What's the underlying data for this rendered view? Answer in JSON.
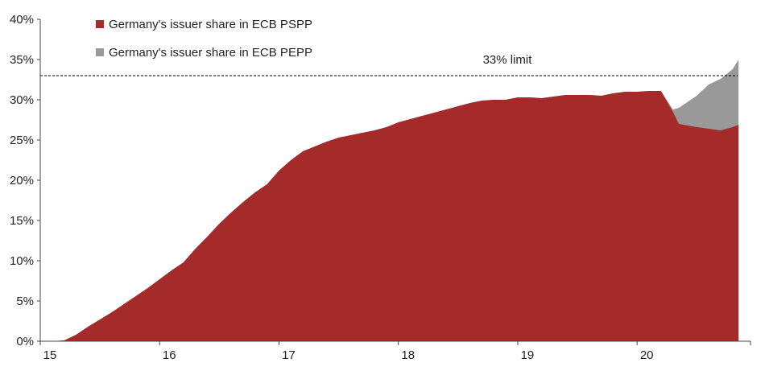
{
  "chart_data": {
    "type": "area",
    "stacked": true,
    "x": [
      15.0,
      15.1,
      15.2,
      15.3,
      15.4,
      15.5,
      15.6,
      15.7,
      15.8,
      15.9,
      16.0,
      16.1,
      16.2,
      16.3,
      16.4,
      16.5,
      16.6,
      16.7,
      16.8,
      16.9,
      17.0,
      17.1,
      17.2,
      17.3,
      17.4,
      17.5,
      17.6,
      17.7,
      17.8,
      17.9,
      18.0,
      18.1,
      18.2,
      18.3,
      18.4,
      18.5,
      18.6,
      18.7,
      18.8,
      18.9,
      19.0,
      19.1,
      19.2,
      19.3,
      19.4,
      19.5,
      19.6,
      19.7,
      19.8,
      19.9,
      20.0,
      20.1,
      20.2,
      20.3,
      20.35,
      20.5,
      20.6,
      20.7,
      20.8,
      20.85
    ],
    "series": [
      {
        "name": "Germany's issuer share in ECB PSPP",
        "color": "#a52a2a",
        "values": [
          0,
          0,
          0.1,
          0.8,
          1.8,
          2.7,
          3.6,
          4.6,
          5.6,
          6.6,
          7.7,
          8.8,
          9.8,
          11.5,
          13.0,
          14.6,
          16.0,
          17.3,
          18.5,
          19.5,
          21.2,
          22.5,
          23.6,
          24.2,
          24.8,
          25.3,
          25.6,
          25.9,
          26.2,
          26.6,
          27.2,
          27.6,
          28.0,
          28.4,
          28.8,
          29.2,
          29.6,
          29.9,
          30.0,
          30.0,
          30.3,
          30.3,
          30.2,
          30.4,
          30.6,
          30.6,
          30.6,
          30.5,
          30.8,
          31.0,
          31.0,
          31.1,
          31.1,
          28.5,
          27.0,
          26.6,
          26.4,
          26.2,
          26.6,
          26.9
        ]
      },
      {
        "name": "Germany's issuer share in ECB PEPP",
        "color": "#999999",
        "values": [
          0,
          0,
          0,
          0,
          0,
          0,
          0,
          0,
          0,
          0,
          0,
          0,
          0,
          0,
          0,
          0,
          0,
          0,
          0,
          0,
          0,
          0,
          0,
          0,
          0,
          0,
          0,
          0,
          0,
          0,
          0,
          0,
          0,
          0,
          0,
          0,
          0,
          0,
          0,
          0,
          0,
          0,
          0,
          0,
          0,
          0,
          0,
          0,
          0,
          0,
          0,
          0,
          0,
          0.3,
          2.0,
          3.9,
          5.5,
          6.4,
          7.2,
          8.1
        ]
      }
    ],
    "xlim": [
      15.0,
      20.95
    ],
    "ylim": [
      0,
      40
    ],
    "x_ticks": [
      "15",
      "16",
      "17",
      "18",
      "19",
      "20"
    ],
    "x_tick_values": [
      15,
      16,
      17,
      18,
      19,
      20
    ],
    "y_ticks": [
      "0%",
      "5%",
      "10%",
      "15%",
      "20%",
      "25%",
      "30%",
      "35%",
      "40%"
    ],
    "y_tick_values": [
      0,
      5,
      10,
      15,
      20,
      25,
      30,
      35,
      40
    ],
    "reference_line": {
      "value": 33,
      "label": "33% limit",
      "style": "dashed"
    },
    "legend": {
      "placement": "top-center"
    },
    "grid": false,
    "title": "",
    "xlabel": "",
    "ylabel": ""
  }
}
